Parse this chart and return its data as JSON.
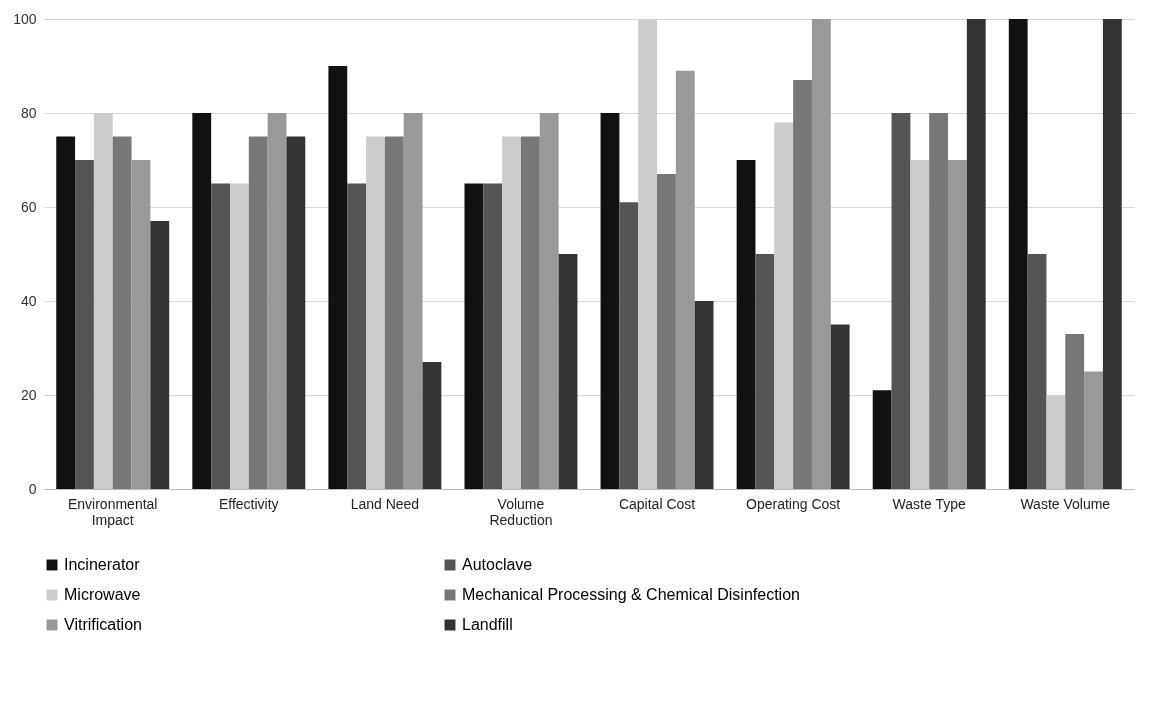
{
  "chart_data": {
    "type": "bar",
    "categories": [
      "Environmental Impact",
      "Effectivity",
      "Land Need",
      "Volume Reduction",
      "Capital Cost",
      "Operating Cost",
      "Waste Type",
      "Waste Volume"
    ],
    "series": [
      {
        "name": "Incinerator",
        "color": "#111111",
        "values": [
          75,
          80,
          90,
          65,
          80,
          70,
          21,
          100
        ]
      },
      {
        "name": "Autoclave",
        "color": "#555555",
        "values": [
          70,
          65,
          65,
          65,
          61,
          50,
          80,
          50
        ]
      },
      {
        "name": "Microwave",
        "color": "#cccccc",
        "values": [
          80,
          65,
          75,
          75,
          100,
          78,
          70,
          20
        ]
      },
      {
        "name": "Mechanical Processing & Chemical Disinfection",
        "color": "#777777",
        "values": [
          75,
          75,
          75,
          75,
          67,
          87,
          80,
          33
        ]
      },
      {
        "name": "Vitrification",
        "color": "#999999",
        "values": [
          70,
          80,
          80,
          80,
          89,
          100,
          70,
          25
        ]
      },
      {
        "name": "Landfill",
        "color": "#333333",
        "values": [
          57,
          75,
          27,
          50,
          40,
          35,
          100,
          100
        ]
      }
    ],
    "ylim": [
      0,
      100
    ],
    "yticks": [
      0,
      20,
      40,
      60,
      80,
      100
    ],
    "grid": "y",
    "legend": "bottom"
  }
}
